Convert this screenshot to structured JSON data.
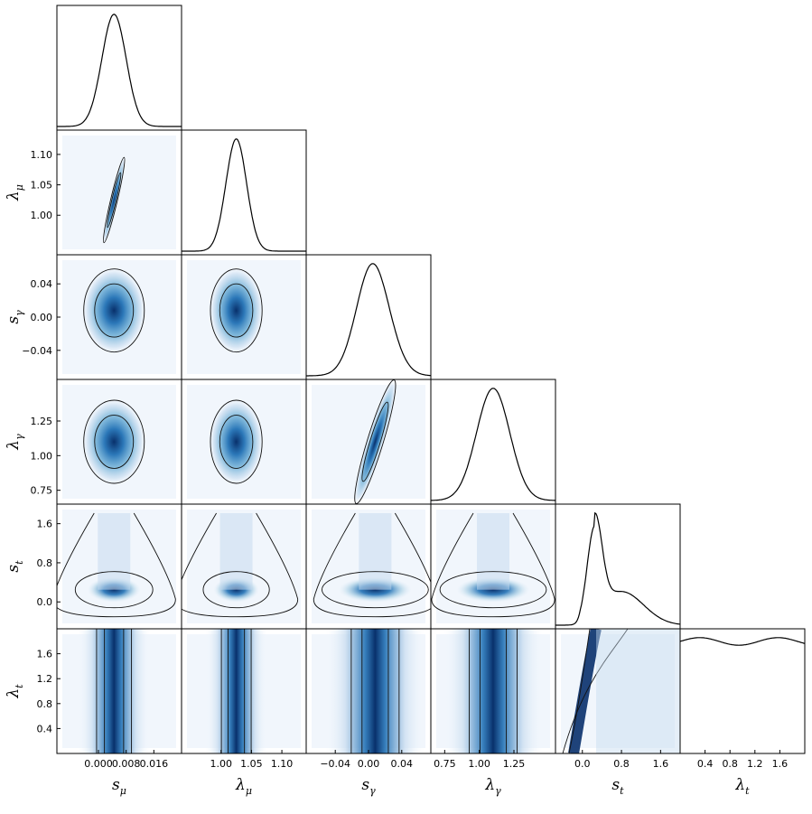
{
  "chart_data": {
    "type": "corner",
    "params": [
      {
        "key": "s_mu",
        "sym": "s",
        "sub": "μ",
        "range": [
          -0.012,
          0.024
        ],
        "ticks": [
          0.0,
          0.008,
          0.016
        ],
        "tick_labels": [
          "0.000",
          "0.008",
          "0.016"
        ],
        "mean": 0.0045,
        "sd": 0.0035
      },
      {
        "key": "lambda_mu",
        "sym": "λ",
        "sub": "μ",
        "range": [
          0.935,
          1.14
        ],
        "ticks": [
          1.0,
          1.05,
          1.1
        ],
        "tick_labels": [
          "1.00",
          "1.05",
          "1.10"
        ],
        "mean": 1.025,
        "sd": 0.017
      },
      {
        "key": "s_gamma",
        "sym": "s",
        "sub": "γ",
        "range": [
          -0.075,
          0.075
        ],
        "ticks": [
          -0.04,
          0.0,
          0.04
        ],
        "tick_labels": [
          "−0.04",
          "0.00",
          "0.04"
        ],
        "mean": 0.008,
        "sd": 0.02
      },
      {
        "key": "lambda_gamma",
        "sym": "λ",
        "sub": "γ",
        "range": [
          0.65,
          1.55
        ],
        "ticks": [
          0.75,
          1.0,
          1.25
        ],
        "tick_labels": [
          "0.75",
          "1.00",
          "1.25"
        ],
        "mean": 1.1,
        "sd": 0.12
      },
      {
        "key": "s_t",
        "sym": "s",
        "sub": "t",
        "range": [
          -0.55,
          2.0
        ],
        "ticks": [
          0.0,
          0.8,
          1.6
        ],
        "tick_labels": [
          "0.0",
          "0.8",
          "1.6"
        ],
        "mean": 0.25,
        "sd": 0.15
      },
      {
        "key": "lambda_t",
        "sym": "λ",
        "sub": "t",
        "range": [
          0.0,
          2.0
        ],
        "ticks": [
          0.4,
          0.8,
          1.2,
          1.6
        ],
        "tick_labels": [
          "0.4",
          "0.8",
          "1.2",
          "1.6"
        ],
        "mean": 1.0,
        "sd": 10.0
      }
    ],
    "correlations": [
      {
        "pair": [
          "s_mu",
          "lambda_mu"
        ],
        "rho": 0.93
      },
      {
        "pair": [
          "s_gamma",
          "lambda_gamma"
        ],
        "rho": 0.88
      }
    ],
    "marginal_style": "line",
    "joint_style": "filled-density-with-2-contours",
    "colormap": [
      "#f7fbff",
      "#c6dbef",
      "#6baed6",
      "#2171b5",
      "#08306b"
    ]
  }
}
